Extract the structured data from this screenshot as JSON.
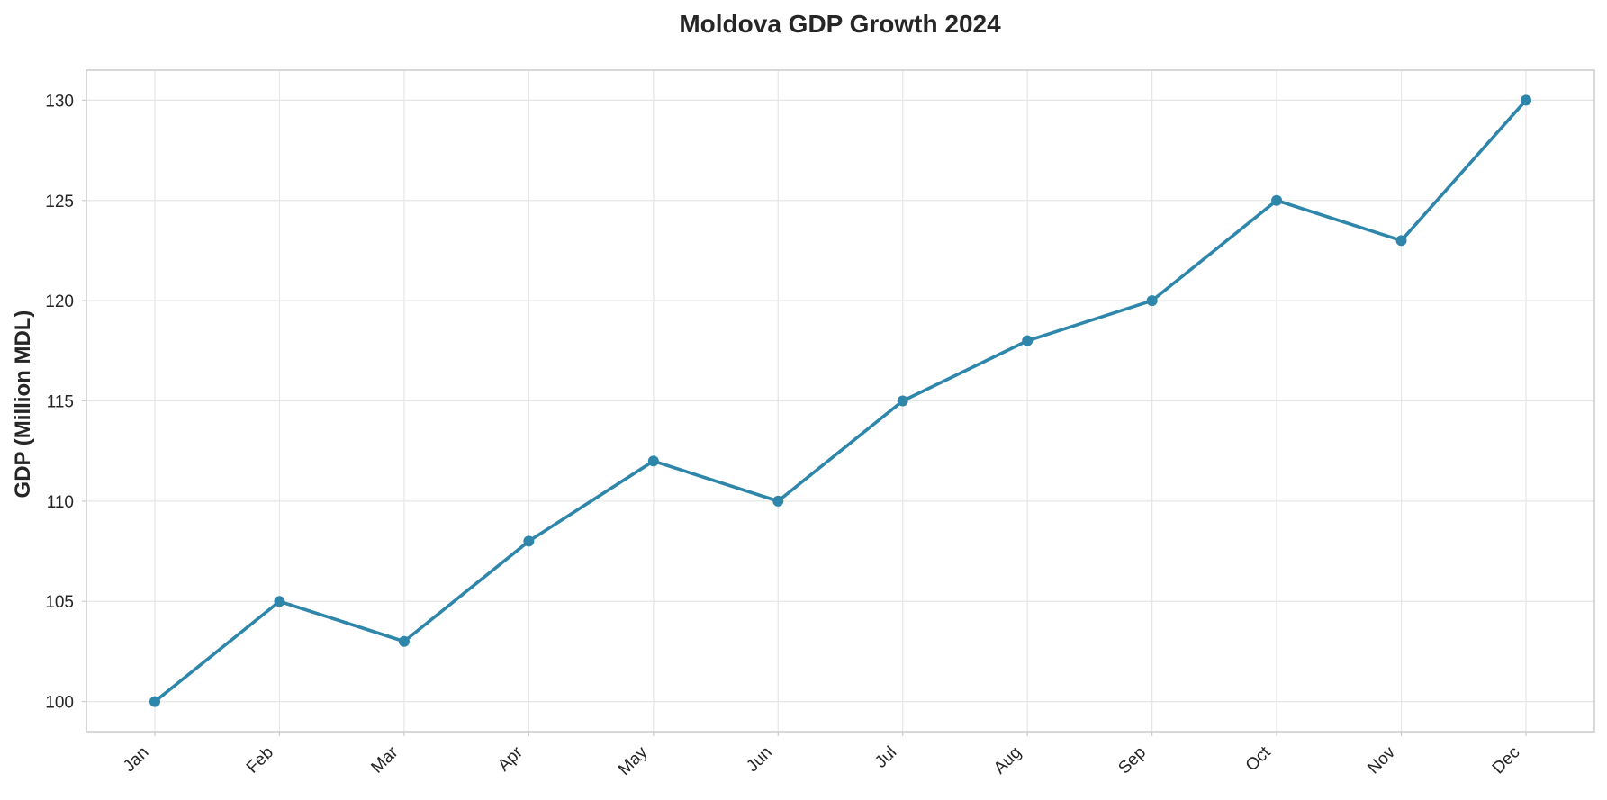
{
  "chart_data": {
    "type": "line",
    "title": "Moldova GDP Growth 2024",
    "xlabel": "",
    "ylabel": "GDP (Million MDL)",
    "categories": [
      "Jan",
      "Feb",
      "Mar",
      "Apr",
      "May",
      "Jun",
      "Jul",
      "Aug",
      "Sep",
      "Oct",
      "Nov",
      "Dec"
    ],
    "series": [
      {
        "values": [
          100,
          105,
          103,
          108,
          112,
          110,
          115,
          118,
          120,
          125,
          123,
          130
        ],
        "color": "#2e86ab"
      }
    ],
    "ylim": [
      98.5,
      131.5
    ],
    "yticks": [
      100,
      105,
      110,
      115,
      120,
      125,
      130
    ],
    "grid": true,
    "legend": "none"
  }
}
